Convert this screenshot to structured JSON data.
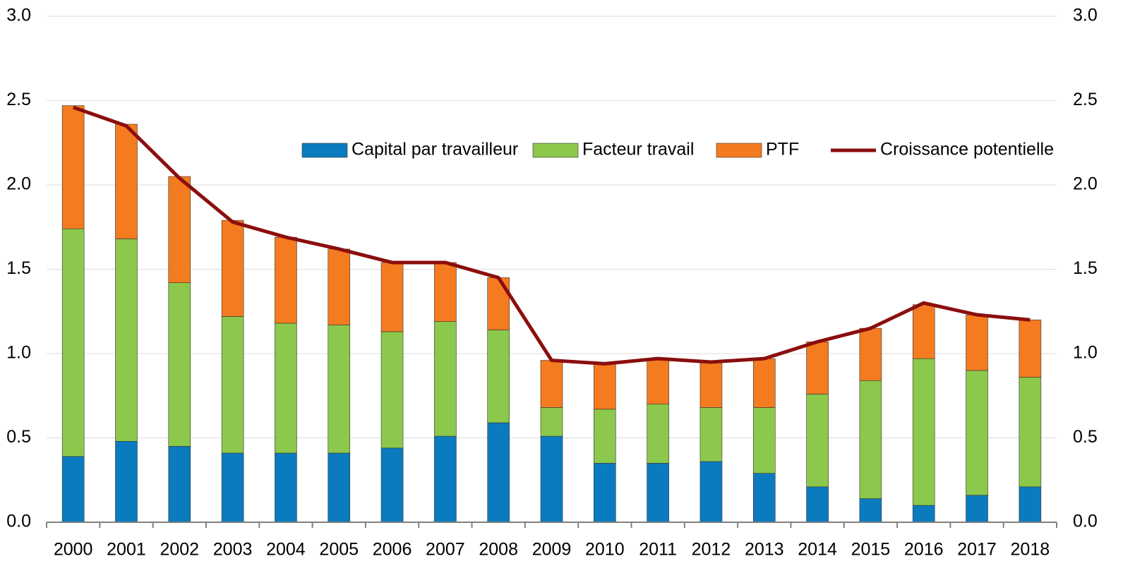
{
  "chart_data": {
    "type": "bar",
    "stacked": true,
    "categories": [
      "2000",
      "2001",
      "2002",
      "2003",
      "2004",
      "2005",
      "2006",
      "2007",
      "2008",
      "2009",
      "2010",
      "2011",
      "2012",
      "2013",
      "2014",
      "2015",
      "2016",
      "2017",
      "2018"
    ],
    "series": [
      {
        "name": "Capital par travailleur",
        "color": "#0a7bbf",
        "values": [
          0.39,
          0.48,
          0.45,
          0.41,
          0.41,
          0.41,
          0.44,
          0.51,
          0.59,
          0.51,
          0.35,
          0.35,
          0.36,
          0.29,
          0.21,
          0.14,
          0.1,
          0.16,
          0.21
        ]
      },
      {
        "name": "Facteur travail",
        "color": "#8cc84b",
        "values": [
          1.35,
          1.2,
          0.97,
          0.81,
          0.77,
          0.76,
          0.69,
          0.68,
          0.55,
          0.17,
          0.32,
          0.35,
          0.32,
          0.39,
          0.55,
          0.7,
          0.87,
          0.74,
          0.65
        ]
      },
      {
        "name": "PTF",
        "color": "#f47b20",
        "values": [
          0.73,
          0.68,
          0.63,
          0.57,
          0.51,
          0.45,
          0.41,
          0.35,
          0.31,
          0.28,
          0.27,
          0.27,
          0.27,
          0.29,
          0.31,
          0.31,
          0.32,
          0.33,
          0.34
        ]
      },
      {
        "name": "Croissance potentielle",
        "type": "line",
        "color": "#8b0e0e",
        "values": [
          2.46,
          2.35,
          2.04,
          1.78,
          1.69,
          1.62,
          1.54,
          1.54,
          1.45,
          0.96,
          0.94,
          0.97,
          0.95,
          0.97,
          1.07,
          1.15,
          1.3,
          1.23,
          1.2
        ]
      }
    ],
    "ylim": [
      0,
      3
    ],
    "yticks": [
      {
        "value": 0,
        "label": "0.0"
      },
      0.5,
      {
        "value": 1,
        "label": "1.0"
      },
      1.5,
      {
        "value": 2,
        "label": "2.0"
      },
      2.5,
      {
        "value": 3,
        "label": "3.0"
      }
    ],
    "y2lim": [
      0,
      3
    ],
    "y2ticks": [
      {
        "value": 0,
        "label": "0.0"
      },
      0.5,
      {
        "value": 1,
        "label": "1.0"
      },
      1.5,
      {
        "value": 2,
        "label": "2.0"
      },
      2.5,
      {
        "value": 3,
        "label": "3.0"
      }
    ],
    "grid": true,
    "legend": "top"
  }
}
